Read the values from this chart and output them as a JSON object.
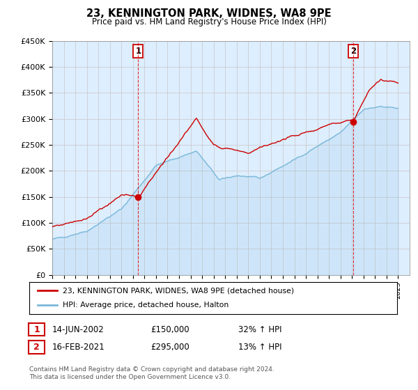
{
  "title": "23, KENNINGTON PARK, WIDNES, WA8 9PE",
  "subtitle": "Price paid vs. HM Land Registry's House Price Index (HPI)",
  "legend_line1": "23, KENNINGTON PARK, WIDNES, WA8 9PE (detached house)",
  "legend_line2": "HPI: Average price, detached house, Halton",
  "transaction1_date": "14-JUN-2002",
  "transaction1_price": 150000,
  "transaction1_label": "32% ↑ HPI",
  "transaction2_date": "16-FEB-2021",
  "transaction2_price": 295000,
  "transaction2_label": "13% ↑ HPI",
  "footer": "Contains HM Land Registry data © Crown copyright and database right 2024.\nThis data is licensed under the Open Government Licence v3.0.",
  "hpi_color": "#7ab8d9",
  "price_color": "#cc0000",
  "vline_color": "#dd0000",
  "marker_color": "#cc0000",
  "chart_bg": "#ddeeff",
  "ylim": [
    0,
    450000
  ],
  "yticks": [
    0,
    50000,
    100000,
    150000,
    200000,
    250000,
    300000,
    350000,
    400000,
    450000
  ],
  "ytick_labels": [
    "£0",
    "£50K",
    "£100K",
    "£150K",
    "£200K",
    "£250K",
    "£300K",
    "£350K",
    "£400K",
    "£450K"
  ],
  "xstart": 1995,
  "xend": 2026,
  "background_color": "#ffffff",
  "grid_color": "#cccccc"
}
